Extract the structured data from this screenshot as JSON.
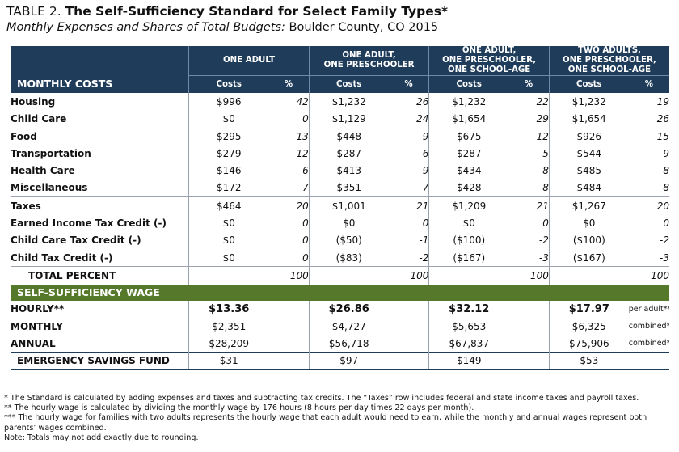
{
  "title": {
    "label": "TABLE 2.",
    "text": "The Self-Sufficiency Standard for Select Family Types*"
  },
  "subtitle": {
    "italic": "Monthly Expenses and Shares of Total Budgets:",
    "plain": "Boulder County, CO 2015"
  },
  "columns": {
    "groups": [
      {
        "line1": "ONE ADULT",
        "line2": "",
        "line3": ""
      },
      {
        "line1": "ONE ADULT,",
        "line2": "ONE PRESCHOOLER",
        "line3": ""
      },
      {
        "line1": "ONE ADULT,",
        "line2": "ONE PRESCHOOLER,",
        "line3": "ONE SCHOOL-AGE"
      },
      {
        "line1": "TWO ADULTS,",
        "line2": "ONE PRESCHOOLER,",
        "line3": "ONE SCHOOL-AGE"
      }
    ],
    "section_label": "MONTHLY COSTS",
    "costs_label": "Costs",
    "pct_label": "%"
  },
  "rows": [
    {
      "label": "Housing",
      "cells": [
        "$996",
        "42",
        "$1,232",
        "26",
        "$1,232",
        "22",
        "$1,232",
        "19"
      ]
    },
    {
      "label": "Child Care",
      "cells": [
        "$0",
        "0",
        "$1,129",
        "24",
        "$1,654",
        "29",
        "$1,654",
        "26"
      ]
    },
    {
      "label": "Food",
      "cells": [
        "$295",
        "13",
        "$448",
        "9",
        "$675",
        "12",
        "$926",
        "15"
      ]
    },
    {
      "label": "Transportation",
      "cells": [
        "$279",
        "12",
        "$287",
        "6",
        "$287",
        "5",
        "$544",
        "9"
      ]
    },
    {
      "label": "Health Care",
      "cells": [
        "$146",
        "6",
        "$413",
        "9",
        "$434",
        "8",
        "$485",
        "8"
      ]
    },
    {
      "label": "Miscellaneous",
      "cells": [
        "$172",
        "7",
        "$351",
        "7",
        "$428",
        "8",
        "$484",
        "8"
      ]
    },
    {
      "label": "Taxes",
      "cells": [
        "$464",
        "20",
        "$1,001",
        "21",
        "$1,209",
        "21",
        "$1,267",
        "20"
      ]
    },
    {
      "label": "Earned Income Tax Credit (-)",
      "cells": [
        "$0",
        "0",
        "$0",
        "0",
        "$0",
        "0",
        "$0",
        "0"
      ]
    },
    {
      "label": "Child Care Tax Credit (-)",
      "cells": [
        "$0",
        "0",
        "($50)",
        "-1",
        "($100)",
        "-2",
        "($100)",
        "-2"
      ]
    },
    {
      "label": "Child Tax Credit (-)",
      "cells": [
        "$0",
        "0",
        "($83)",
        "-2",
        "($167)",
        "-3",
        "($167)",
        "-3"
      ]
    },
    {
      "label": "TOTAL PERCENT",
      "cells": [
        "",
        "100",
        "",
        "100",
        "",
        "100",
        "",
        "100"
      ]
    }
  ],
  "wage": {
    "section_label": "SELF-SUFFICIENCY WAGE",
    "hourly": {
      "label": "HOURLY**",
      "cells": [
        "$13.36",
        "$26.86",
        "$32.12",
        "$17.97"
      ],
      "note": "per adult***"
    },
    "monthly": {
      "label": "MONTHLY",
      "cells": [
        "$2,351",
        "$4,727",
        "$5,653",
        "$6,325"
      ],
      "note": "combined***"
    },
    "annual": {
      "label": "ANNUAL",
      "cells": [
        "$28,209",
        "$56,718",
        "$67,837",
        "$75,906"
      ],
      "note": "combined***"
    }
  },
  "emergency": {
    "label": "EMERGENCY SAVINGS FUND",
    "cells": [
      "$31",
      "$97",
      "$149",
      "$53"
    ]
  },
  "footnotes": [
    "* The Standard is calculated by adding expenses and taxes and subtracting tax credits. The “Taxes” row includes federal and state income taxes and payroll taxes.",
    "** The hourly wage is calculated by dividing the monthly wage by 176 hours (8 hours per day times 22 days per month).",
    "*** The hourly wage for families with two adults represents the hourly wage that each adult would need to earn, while the monthly and annual wages represent both parents’ wages combined.",
    "Note: Totals may not add exactly due to rounding."
  ]
}
